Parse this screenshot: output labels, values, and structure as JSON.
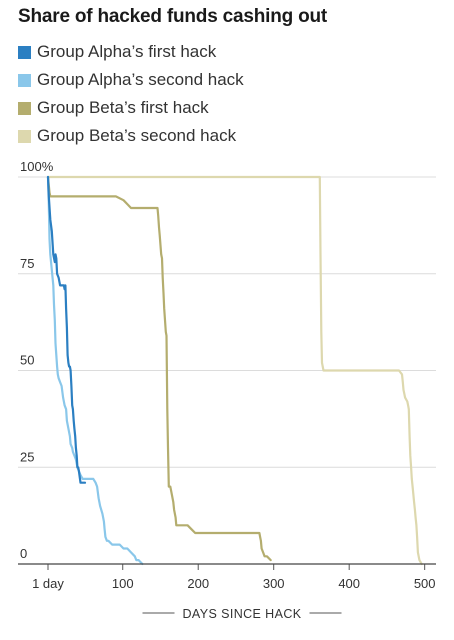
{
  "chart_data": {
    "type": "line",
    "title": "Share of hacked funds cashing out",
    "xlabel": "DAYS SINCE HACK",
    "ylabel": "",
    "xlim": [
      1,
      515
    ],
    "ylim": [
      0,
      100
    ],
    "x_ticks": [
      {
        "value": 1,
        "label": "1 day"
      },
      {
        "value": 100,
        "label": "100"
      },
      {
        "value": 200,
        "label": "200"
      },
      {
        "value": 300,
        "label": "300"
      },
      {
        "value": 400,
        "label": "400"
      },
      {
        "value": 500,
        "label": "500"
      }
    ],
    "y_ticks": [
      {
        "value": 100,
        "label": "100%"
      },
      {
        "value": 75,
        "label": "75"
      },
      {
        "value": 50,
        "label": "50"
      },
      {
        "value": 25,
        "label": "25"
      },
      {
        "value": 0,
        "label": "0"
      }
    ],
    "grid": true,
    "legend_position": "top-left",
    "series": [
      {
        "name": "Group Alpha’s first hack",
        "color": "#2b7fc2",
        "points": [
          [
            1,
            100
          ],
          [
            2,
            95
          ],
          [
            4,
            89
          ],
          [
            6,
            86
          ],
          [
            8,
            80
          ],
          [
            10,
            78
          ],
          [
            11,
            80
          ],
          [
            12,
            79
          ],
          [
            13,
            75
          ],
          [
            15,
            74
          ],
          [
            17,
            72
          ],
          [
            19,
            72
          ],
          [
            21,
            72
          ],
          [
            22,
            72
          ],
          [
            23,
            71
          ],
          [
            24,
            72
          ],
          [
            25,
            66
          ],
          [
            26,
            61
          ],
          [
            27,
            54
          ],
          [
            28,
            52
          ],
          [
            29,
            51
          ],
          [
            30,
            51
          ],
          [
            31,
            50
          ],
          [
            32,
            46
          ],
          [
            33,
            41
          ],
          [
            34,
            40
          ],
          [
            35,
            37
          ],
          [
            36,
            35
          ],
          [
            37,
            33
          ],
          [
            38,
            30
          ],
          [
            39,
            28
          ],
          [
            40,
            25
          ],
          [
            41,
            25
          ],
          [
            42,
            24
          ],
          [
            44,
            21
          ],
          [
            47,
            21
          ],
          [
            50,
            21
          ]
        ]
      },
      {
        "name": "Group Alpha’s second hack",
        "color": "#8ac7ea",
        "points": [
          [
            1,
            100
          ],
          [
            2,
            93
          ],
          [
            3,
            84
          ],
          [
            4,
            80
          ],
          [
            6,
            76
          ],
          [
            8,
            72
          ],
          [
            9,
            67
          ],
          [
            10,
            63
          ],
          [
            11,
            57
          ],
          [
            13,
            51
          ],
          [
            14,
            49
          ],
          [
            15,
            48
          ],
          [
            17,
            47
          ],
          [
            19,
            46
          ],
          [
            21,
            43
          ],
          [
            23,
            41
          ],
          [
            25,
            40
          ],
          [
            26,
            37
          ],
          [
            28,
            35
          ],
          [
            30,
            33
          ],
          [
            31,
            31
          ],
          [
            33,
            30
          ],
          [
            34,
            29
          ],
          [
            36,
            28
          ],
          [
            38,
            27
          ],
          [
            40,
            25
          ],
          [
            42,
            24
          ],
          [
            44,
            23
          ],
          [
            47,
            22
          ],
          [
            51,
            22
          ],
          [
            56,
            22
          ],
          [
            61,
            22
          ],
          [
            64,
            21
          ],
          [
            66,
            20
          ],
          [
            68,
            17
          ],
          [
            70,
            15
          ],
          [
            73,
            13
          ],
          [
            75,
            11
          ],
          [
            76,
            9
          ],
          [
            77,
            7
          ],
          [
            79,
            6
          ],
          [
            81,
            6
          ],
          [
            86,
            5
          ],
          [
            91,
            5
          ],
          [
            96,
            5
          ],
          [
            101,
            4
          ],
          [
            106,
            4
          ],
          [
            111,
            3
          ],
          [
            116,
            2
          ],
          [
            118,
            1
          ],
          [
            121,
            1
          ],
          [
            126,
            0
          ]
        ]
      },
      {
        "name": "Group Beta’s first hack",
        "color": "#b4ad6e",
        "points": [
          [
            1,
            100
          ],
          [
            3,
            96
          ],
          [
            4,
            95
          ],
          [
            31,
            95
          ],
          [
            61,
            95
          ],
          [
            91,
            95
          ],
          [
            101,
            94
          ],
          [
            106,
            93
          ],
          [
            111,
            92
          ],
          [
            121,
            92
          ],
          [
            131,
            92
          ],
          [
            146,
            92
          ],
          [
            147,
            90
          ],
          [
            148,
            87
          ],
          [
            149,
            85
          ],
          [
            151,
            80
          ],
          [
            152,
            79
          ],
          [
            153,
            74
          ],
          [
            154,
            70
          ],
          [
            155,
            66
          ],
          [
            156,
            63
          ],
          [
            157,
            60
          ],
          [
            158,
            59
          ],
          [
            159,
            40
          ],
          [
            160,
            30
          ],
          [
            161,
            20
          ],
          [
            163,
            20
          ],
          [
            165,
            18
          ],
          [
            167,
            16
          ],
          [
            168,
            14
          ],
          [
            170,
            12
          ],
          [
            171,
            10
          ],
          [
            181,
            10
          ],
          [
            186,
            10
          ],
          [
            191,
            9
          ],
          [
            196,
            8
          ],
          [
            201,
            8
          ],
          [
            231,
            8
          ],
          [
            261,
            8
          ],
          [
            281,
            8
          ],
          [
            282,
            7
          ],
          [
            283,
            6
          ],
          [
            284,
            4
          ],
          [
            286,
            3
          ],
          [
            288,
            2
          ],
          [
            291,
            2
          ],
          [
            296,
            1
          ]
        ]
      },
      {
        "name": "Group Beta’s second hack",
        "color": "#ddd8ae",
        "points": [
          [
            1,
            100
          ],
          [
            51,
            100
          ],
          [
            101,
            100
          ],
          [
            151,
            100
          ],
          [
            201,
            100
          ],
          [
            251,
            100
          ],
          [
            301,
            100
          ],
          [
            361,
            100
          ],
          [
            362,
            80
          ],
          [
            363,
            60
          ],
          [
            364,
            52
          ],
          [
            366,
            50
          ],
          [
            401,
            50
          ],
          [
            451,
            50
          ],
          [
            466,
            50
          ],
          [
            470,
            49
          ],
          [
            471,
            47
          ],
          [
            472,
            45
          ],
          [
            473,
            44
          ],
          [
            474,
            43
          ],
          [
            477,
            42
          ],
          [
            478,
            41
          ],
          [
            479,
            40
          ],
          [
            480,
            33
          ],
          [
            481,
            28
          ],
          [
            482,
            25
          ],
          [
            483,
            22
          ],
          [
            484,
            20
          ],
          [
            486,
            16
          ],
          [
            487,
            14
          ],
          [
            488,
            12
          ],
          [
            489,
            10
          ],
          [
            490,
            7
          ],
          [
            491,
            3
          ],
          [
            493,
            1
          ],
          [
            496,
            0
          ]
        ]
      }
    ]
  }
}
